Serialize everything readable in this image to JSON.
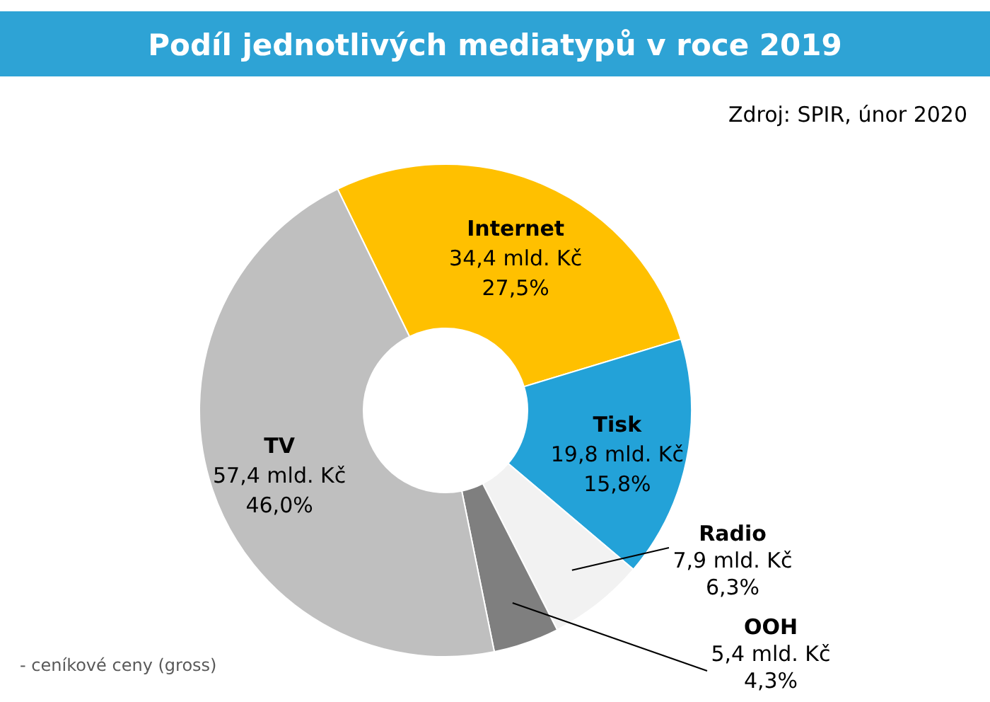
{
  "chart_data": {
    "type": "donut",
    "title": "Podíl jednotlivých mediatypů v roce 2019",
    "categories": [
      "Internet",
      "Tisk",
      "Radio",
      "OOH",
      "TV"
    ],
    "values": [
      34.4,
      19.8,
      7.9,
      5.4,
      57.4
    ],
    "colors": [
      "#ffc000",
      "#23a2d8",
      "#f2f2f2",
      "#7f7f7f",
      "#bfbfbf"
    ],
    "value_labels": [
      "34,4 mld. Kč\n27,5%",
      "19,8 mld. Kč\n15,8%",
      "7,9 mld. Kč\n6,3%",
      "5,4 mld. Kč\n4,3%",
      "57,4 mld. Kč\n46,0%"
    ],
    "annotations": [
      "Zdroj: SPIR, únor 2020",
      "- ceníkové ceny (gross)"
    ]
  }
}
